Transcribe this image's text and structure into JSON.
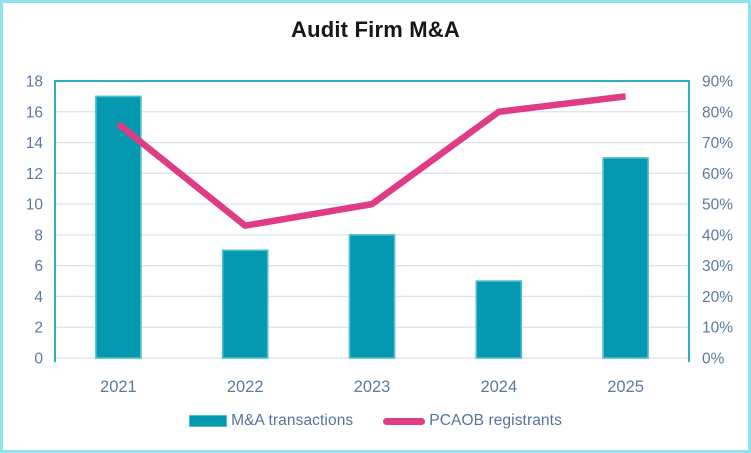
{
  "title": "Audit Firm M&A",
  "chart_data": {
    "type": "combo-bar-line",
    "categories": [
      "2021",
      "2022",
      "2023",
      "2024",
      "2025"
    ],
    "series": [
      {
        "name": "M&A transactions",
        "type": "bar",
        "axis": "left",
        "values": [
          17,
          7,
          8,
          5,
          13
        ],
        "color": "#0599B1",
        "border_color": "#4FBECC"
      },
      {
        "name": "PCAOB registrants",
        "type": "line",
        "axis": "right",
        "values": [
          76,
          43,
          50,
          80,
          85
        ],
        "unit": "%",
        "color": "#E03C86"
      }
    ],
    "left_axis": {
      "min": 0,
      "max": 18,
      "step": 2,
      "tick_labels": [
        "0",
        "2",
        "4",
        "6",
        "8",
        "10",
        "12",
        "14",
        "16",
        "18"
      ]
    },
    "right_axis": {
      "min": 0,
      "max": 90,
      "step": 10,
      "tick_labels": [
        "0%",
        "10%",
        "20%",
        "30%",
        "40%",
        "50%",
        "60%",
        "70%",
        "80%",
        "90%"
      ]
    },
    "grid": true,
    "legend_position": "bottom"
  },
  "colors": {
    "bar_fill": "#0599B1",
    "bar_border": "#4FBECC",
    "line_stroke": "#E03C86",
    "axis_text": "#5B7B9E",
    "legend_text": "#53759C",
    "gridline": "#DCE1ED",
    "plot_border": "#2FAEC1",
    "outer_border": "#8DE3EF",
    "title_text": "#171717",
    "background": "#FFFFFF"
  }
}
